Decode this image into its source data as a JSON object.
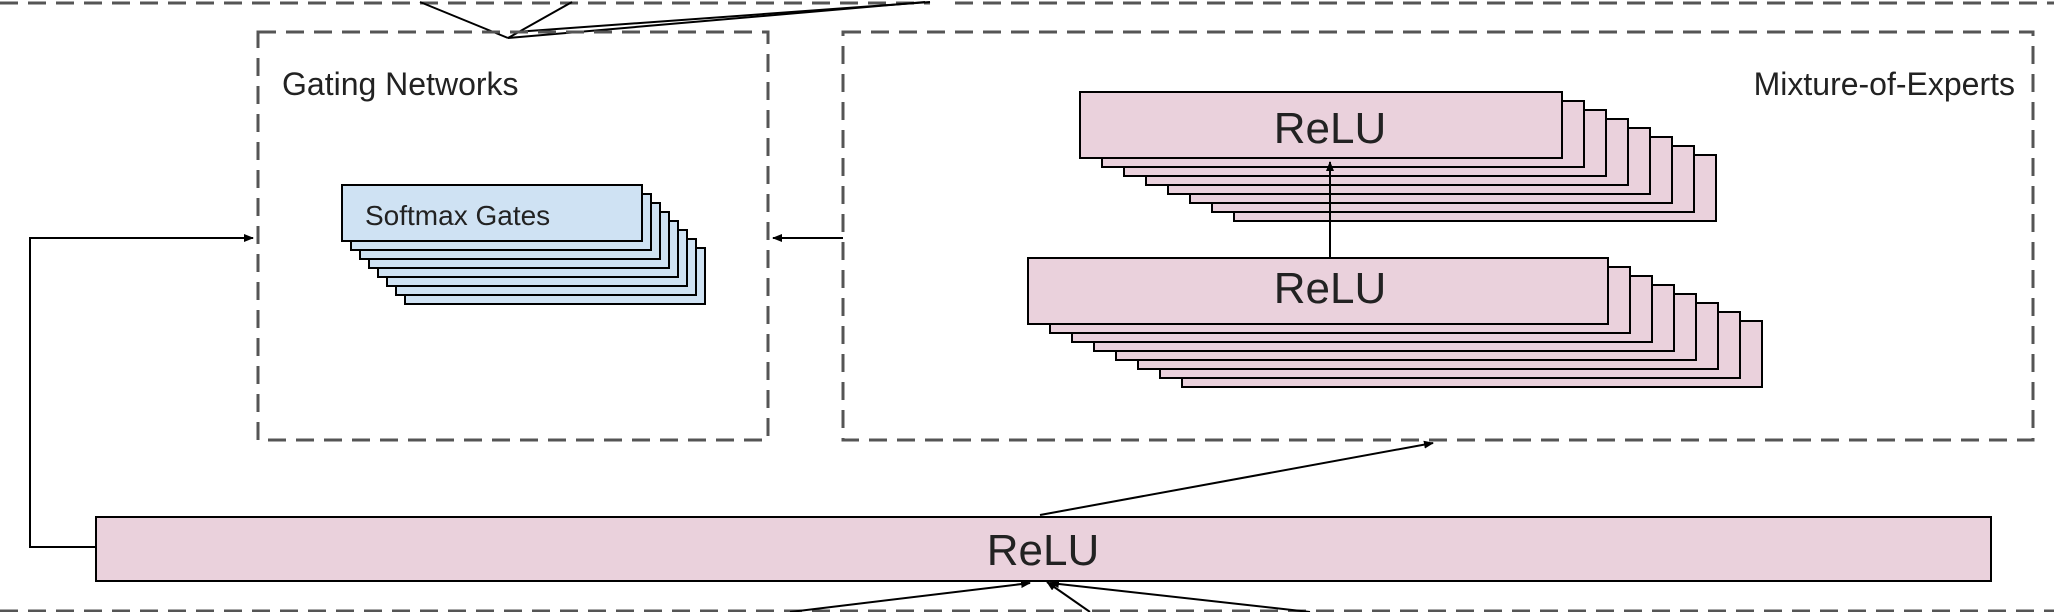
{
  "gating": {
    "title": "Gating Networks",
    "gate_label": "Softmax Gates"
  },
  "moe": {
    "title": "Mixture-of-Experts",
    "upper_expert_label": "ReLU",
    "lower_expert_label": "ReLU"
  },
  "bottom_layer": {
    "label": "ReLU"
  },
  "colors": {
    "relu_fill": "#ead1dc",
    "gate_fill": "#cfe2f3",
    "stroke": "#000000",
    "dashed_border": "#555555"
  }
}
